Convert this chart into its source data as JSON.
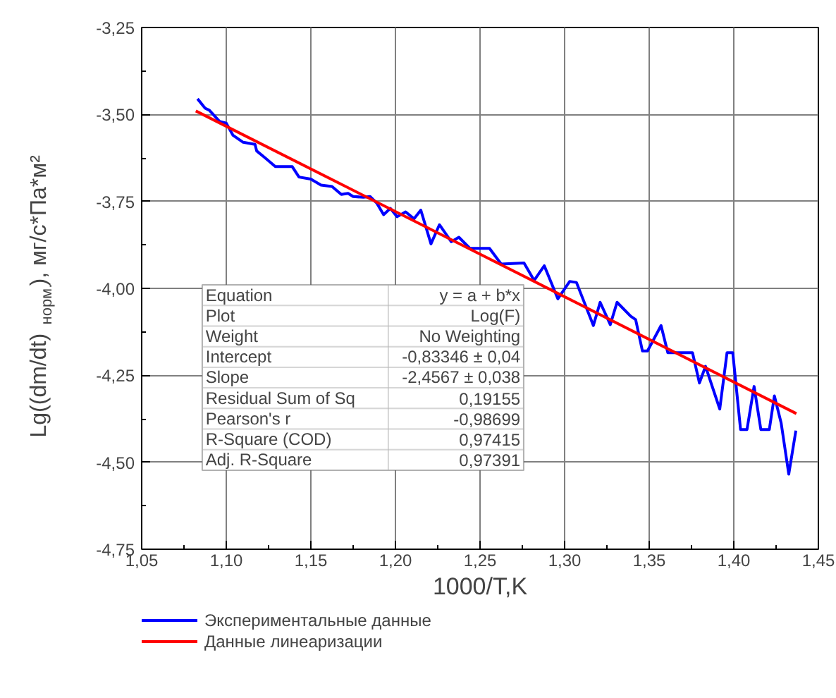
{
  "chart_data": {
    "type": "line",
    "xlabel": "1000/T,K",
    "ylabel": "Lg((dm/dt)$_{норм.}$), мг/с*Па*м²",
    "xlim": [
      1.05,
      1.45
    ],
    "ylim": [
      -4.75,
      -3.25
    ],
    "xticks": [
      {
        "value": 1.05,
        "label": "1,05"
      },
      {
        "value": 1.1,
        "label": "1,10"
      },
      {
        "value": 1.15,
        "label": "1,15"
      },
      {
        "value": 1.2,
        "label": "1,20"
      },
      {
        "value": 1.25,
        "label": "1,25"
      },
      {
        "value": 1.3,
        "label": "1,30"
      },
      {
        "value": 1.35,
        "label": "1,35"
      },
      {
        "value": 1.4,
        "label": "1,40"
      },
      {
        "value": 1.45,
        "label": "1,45"
      }
    ],
    "yticks": [
      {
        "value": -4.75,
        "label": "-4,75"
      },
      {
        "value": -4.5,
        "label": "-4,50"
      },
      {
        "value": -4.25,
        "label": "-4,25"
      },
      {
        "value": -4.0,
        "label": "-4,00"
      },
      {
        "value": -3.75,
        "label": "-3,75"
      },
      {
        "value": -3.5,
        "label": "-3,50"
      },
      {
        "value": -3.25,
        "label": "-3,25"
      }
    ],
    "grid": true,
    "legend": "bottom",
    "line_style": "solid",
    "marker": "none",
    "series": [
      {
        "name": "Экспериментальные данные",
        "color": "#0000ff",
        "x": [
          1.083,
          1.0875,
          1.09,
          1.096,
          1.1,
          1.104,
          1.11,
          1.117,
          1.118,
          1.123,
          1.129,
          1.139,
          1.143,
          1.15,
          1.156,
          1.1625,
          1.168,
          1.172,
          1.175,
          1.181,
          1.185,
          1.189,
          1.193,
          1.197,
          1.201,
          1.206,
          1.211,
          1.215,
          1.221,
          1.226,
          1.233,
          1.2375,
          1.244,
          1.2556,
          1.2625,
          1.276,
          1.282,
          1.288,
          1.296,
          1.303,
          1.307,
          1.317,
          1.321,
          1.327,
          1.331,
          1.339,
          1.342,
          1.346,
          1.349,
          1.357,
          1.361,
          1.3756,
          1.3797,
          1.3833,
          1.3917,
          1.396,
          1.3994,
          1.404,
          1.4078,
          1.412,
          1.416,
          1.421,
          1.424,
          1.428,
          1.4325,
          1.4367
        ],
        "values": [
          -3.455,
          -3.482,
          -3.488,
          -3.52,
          -3.525,
          -3.56,
          -3.58,
          -3.586,
          -3.605,
          -3.625,
          -3.65,
          -3.65,
          -3.68,
          -3.686,
          -3.703,
          -3.707,
          -3.73,
          -3.727,
          -3.736,
          -3.738,
          -3.736,
          -3.755,
          -3.788,
          -3.77,
          -3.794,
          -3.78,
          -3.8,
          -3.775,
          -3.872,
          -3.817,
          -3.866,
          -3.853,
          -3.885,
          -3.885,
          -3.93,
          -3.927,
          -3.977,
          -3.935,
          -4.03,
          -3.98,
          -3.983,
          -4.107,
          -4.04,
          -4.104,
          -4.04,
          -4.08,
          -4.09,
          -4.18,
          -4.18,
          -4.107,
          -4.185,
          -4.185,
          -4.272,
          -4.224,
          -4.347,
          -4.185,
          -4.185,
          -4.406,
          -4.406,
          -4.282,
          -4.406,
          -4.406,
          -4.309,
          -4.387,
          -4.534,
          -4.409
        ]
      },
      {
        "name": "Данные линеаризации",
        "color": "#ff0000",
        "x": [
          1.082,
          1.437
        ],
        "values": [
          -3.49,
          -4.36
        ]
      }
    ],
    "annotations": [
      "Equation",
      "y = a + b*x",
      "Plot",
      "Log(F)",
      "Weight",
      "No Weighting",
      "Intercept",
      "-0,83346 ± 0,04",
      "Slope",
      "-2,4567 ± 0,038",
      "Residual Sum of Sq",
      "0,19155",
      "Pearson's r",
      "-0,98699",
      "R-Square (COD)",
      "0,97415",
      "Adj. R-Square",
      "0,97391"
    ]
  }
}
